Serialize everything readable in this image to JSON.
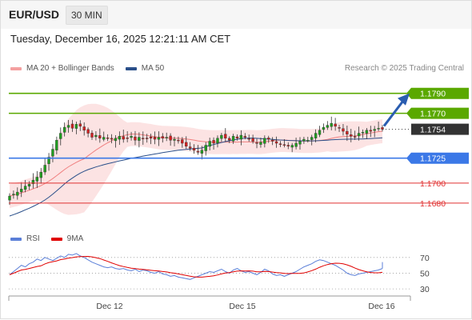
{
  "header": {
    "pair": "EUR/USD",
    "timeframe": "30 MIN"
  },
  "datetime": "Tuesday, December 16, 2025 12:21:11 AM CET",
  "legend": {
    "ma20_label": "MA 20 + Bollinger Bands",
    "ma50_label": "MA 50",
    "ma20_color": "#f08080",
    "ma50_color": "#2a4f8a"
  },
  "credit": "Research © 2025 Trading Central",
  "rsi_legend": {
    "rsi_label": "RSI",
    "ma_label": "9MA",
    "rsi_color": "#5b7fd8",
    "ma_color": "#e00000"
  },
  "chart_data": [
    {
      "type": "candlestick",
      "x_ticks": [
        "Dec 12",
        "Dec 15",
        "Dec 16"
      ],
      "last_price": 1.1754,
      "ylim": [
        1.1655,
        1.1805
      ],
      "levels": [
        {
          "value": 1.179,
          "label": "1.1790",
          "kind": "resistance",
          "color": "#5aa800"
        },
        {
          "value": 1.177,
          "label": "1.1770",
          "kind": "resistance",
          "color": "#5aa800"
        },
        {
          "value": 1.1754,
          "label": "1.1754",
          "kind": "last",
          "color": "#333333"
        },
        {
          "value": 1.1725,
          "label": "1.1725",
          "kind": "pivot",
          "color": "#3b78e7"
        },
        {
          "value": 1.17,
          "label": "1.1700",
          "kind": "support",
          "color": "#e03030"
        },
        {
          "value": 1.168,
          "label": "1.1680",
          "kind": "support",
          "color": "#e03030"
        }
      ],
      "closes": [
        1.1687,
        1.1689,
        1.1691,
        1.1694,
        1.1697,
        1.1699,
        1.1703,
        1.1706,
        1.1711,
        1.1718,
        1.1726,
        1.1734,
        1.1743,
        1.175,
        1.1756,
        1.1758,
        1.1755,
        1.1759,
        1.1757,
        1.1753,
        1.175,
        1.1746,
        1.1748,
        1.1745,
        1.1746,
        1.1745,
        1.1744,
        1.1745,
        1.1747,
        1.1744,
        1.1745,
        1.1747,
        1.1743,
        1.1746,
        1.1745,
        1.1745,
        1.1745,
        1.1744,
        1.1746,
        1.1745,
        1.1746,
        1.1743,
        1.1744,
        1.1743,
        1.174,
        1.1737,
        1.1735,
        1.1733,
        1.1731,
        1.1733,
        1.1738,
        1.1742,
        1.174,
        1.1745,
        1.1748,
        1.1745,
        1.1743,
        1.1747,
        1.1745,
        1.1748,
        1.1746,
        1.1744,
        1.1742,
        1.174,
        1.1741,
        1.1745,
        1.1744,
        1.1742,
        1.174,
        1.1739,
        1.1738,
        1.1737,
        1.1738,
        1.174,
        1.1742,
        1.1744,
        1.1743,
        1.1746,
        1.175,
        1.1753,
        1.1756,
        1.1758,
        1.176,
        1.1757,
        1.1755,
        1.1752,
        1.1749,
        1.1747,
        1.1746,
        1.175,
        1.1751,
        1.1753,
        1.1752,
        1.1754,
        1.1755,
        1.1754
      ],
      "ma20_label": "MA 20 + Bollinger Bands",
      "ma50_label": "MA 50"
    },
    {
      "type": "line",
      "title": "RSI",
      "y_ticks": [
        70,
        50,
        30
      ],
      "ylim": [
        25,
        80
      ],
      "rsi": [
        48,
        52,
        56,
        60,
        58,
        62,
        64,
        68,
        66,
        70,
        68,
        66,
        69,
        72,
        70,
        74,
        73,
        75,
        72,
        70,
        67,
        64,
        62,
        60,
        58,
        57,
        58,
        56,
        55,
        56,
        54,
        53,
        55,
        52,
        54,
        53,
        51,
        50,
        52,
        49,
        48,
        46,
        47,
        45,
        44,
        43,
        42,
        44,
        46,
        48,
        50,
        52,
        51,
        53,
        55,
        52,
        50,
        54,
        56,
        53,
        51,
        52,
        50,
        48,
        51,
        55,
        53,
        49,
        47,
        48,
        46,
        48,
        50,
        52,
        55,
        58,
        60,
        62,
        65,
        67,
        66,
        64,
        62,
        60,
        57,
        54,
        50,
        48,
        47,
        49,
        50,
        51,
        52,
        53,
        54,
        56
      ],
      "rsi_label": "RSI",
      "ma_label": "9MA"
    }
  ]
}
